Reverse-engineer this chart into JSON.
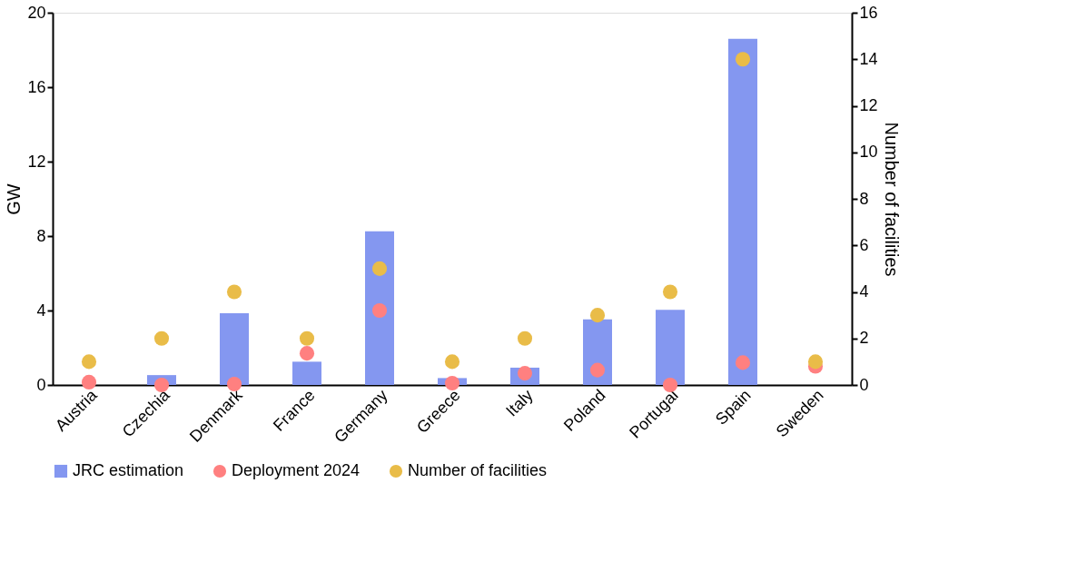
{
  "chart_data": {
    "type": "bar",
    "ylabel": "GW",
    "y2label": "Number  of  facilities",
    "categories": [
      "Austria",
      "Czechia",
      "Denmark",
      "France",
      "Germany",
      "Greece",
      "Italy",
      "Poland",
      "Portugal",
      "Spain",
      "Sweden"
    ],
    "series": [
      {
        "name": "JRC estimation",
        "color": "#8497f0",
        "values": [
          0,
          0.53,
          3.85,
          1.25,
          8.26,
          0.37,
          0.93,
          3.53,
          4.04,
          18.6,
          0
        ]
      },
      {
        "name": "Deployment 2024",
        "type": "scatter",
        "color": "#ff8080",
        "values": [
          0.15,
          0,
          0.05,
          1.7,
          4.0,
          0.1,
          0.63,
          0.8,
          0,
          1.2,
          1.0
        ]
      },
      {
        "name": "Number of facilities",
        "type": "scatter",
        "axis": "y2",
        "color": "#e9bc48",
        "values": [
          1,
          2,
          4,
          2,
          5,
          1,
          2,
          3,
          4,
          14,
          1
        ]
      }
    ],
    "ylim": [
      0,
      20
    ],
    "yticks": [
      0,
      4,
      8,
      12,
      16,
      20
    ],
    "y2lim": [
      0,
      16
    ],
    "y2ticks": [
      0,
      2,
      4,
      6,
      8,
      10,
      12,
      14,
      16
    ],
    "legend": "bottom",
    "marker": "circle",
    "grid": false
  }
}
